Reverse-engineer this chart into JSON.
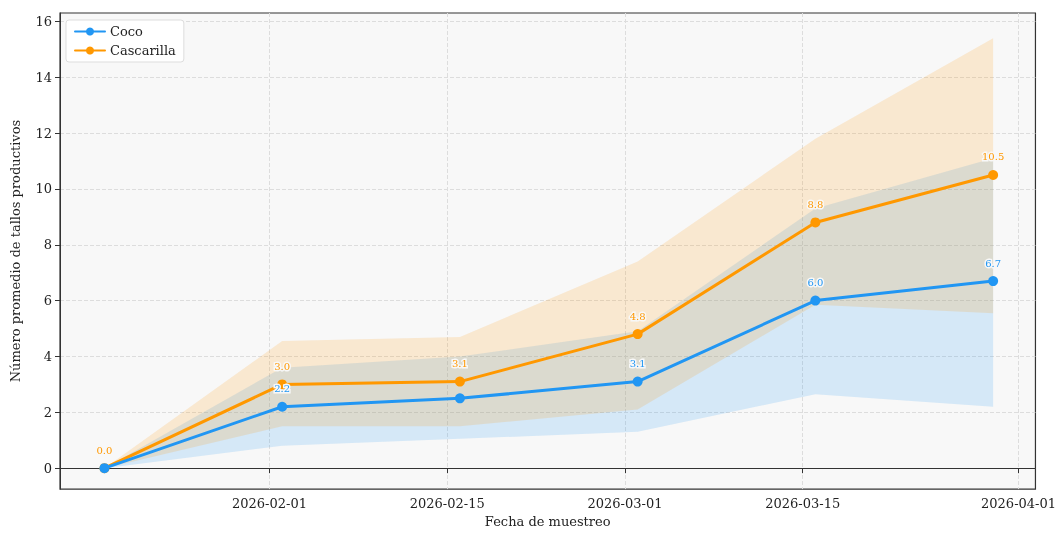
{
  "chart_data": {
    "type": "line",
    "xlabel": "Fecha de muestreo",
    "ylabel": "Número promedio de tallos productivos",
    "x": [
      "2026-01-19",
      "2026-02-02",
      "2026-02-16",
      "2026-03-02",
      "2026-03-16",
      "2026-03-30"
    ],
    "series": [
      {
        "name": "Coco",
        "color": "#2196f3",
        "values": [
          0.0,
          2.2,
          2.5,
          3.1,
          6.0,
          6.7
        ],
        "value_labels": [
          null,
          "2.2",
          null,
          "3.1",
          "6.0",
          "6.7"
        ],
        "lower": [
          0,
          0.8,
          1.05,
          1.3,
          2.65,
          2.2
        ],
        "upper": [
          0,
          3.6,
          4.0,
          4.9,
          9.3,
          11.1
        ]
      },
      {
        "name": "Cascarilla",
        "color": "#ff9800",
        "values": [
          0.0,
          3.0,
          3.1,
          4.8,
          8.8,
          10.5
        ],
        "value_labels": [
          "0.0",
          "3.0",
          "3.1",
          "4.8",
          "8.8",
          "10.5"
        ],
        "lower": [
          0,
          1.5,
          1.5,
          2.1,
          5.85,
          5.55
        ],
        "upper": [
          0,
          4.55,
          4.7,
          7.4,
          11.8,
          15.4
        ]
      }
    ],
    "xlim": [
      "2026-01-15T12:00",
      "2026-04-02T08:00"
    ],
    "xticks": [
      "2026-02-01",
      "2026-02-15",
      "2026-03-01",
      "2026-03-15",
      "2026-04-01"
    ],
    "ylim": [
      -0.75,
      16.3
    ],
    "yticks": [
      0,
      2,
      4,
      6,
      8,
      10,
      12,
      14,
      16
    ],
    "grid": true,
    "legend": "top left",
    "marker": "circle",
    "line_style": "solid"
  }
}
